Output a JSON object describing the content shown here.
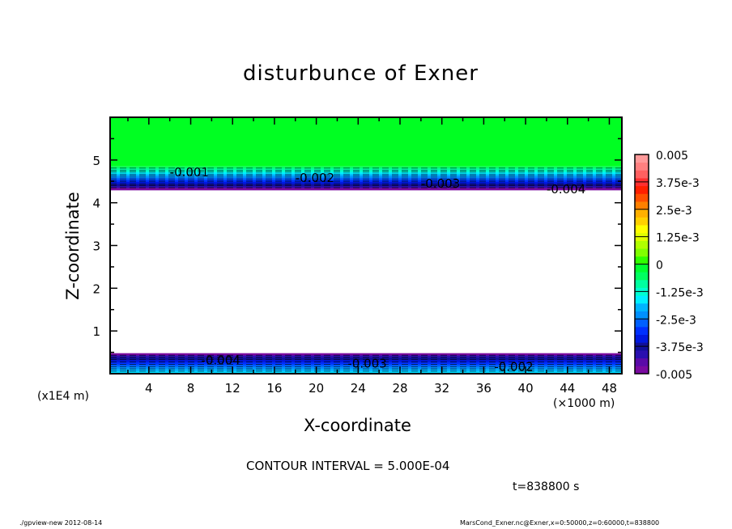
{
  "chart_data": {
    "type": "heatmap",
    "title": "disturbunce of Exner",
    "xlabel": "X-coordinate",
    "ylabel": "Z-coordinate",
    "x_unit": "(×1000 m)",
    "y_unit": "(x1E4 m)",
    "xlim": [
      0.3,
      49.2
    ],
    "ylim": [
      0,
      6
    ],
    "x_ticks": [
      4,
      8,
      12,
      16,
      20,
      24,
      28,
      32,
      36,
      40,
      44,
      48
    ],
    "y_ticks": [
      1,
      2,
      3,
      4,
      5
    ],
    "contour_interval_text": "CONTOUR INTERVAL = 5.000E-04",
    "time_text": "t=838800 s",
    "colorbar": {
      "min": -0.005,
      "max": 0.005,
      "step": 0.0005,
      "tick_labels": [
        "0.005",
        "3.75e-3",
        "2.5e-3",
        "1.25e-3",
        "0",
        "-1.25e-3",
        "-2.5e-3",
        "-3.75e-3",
        "-0.005"
      ],
      "colors": [
        "#7a0aa0",
        "#5a0aa8",
        "#2a10b0",
        "#10109a",
        "#0018e0",
        "#0030ff",
        "#0060ff",
        "#0090ff",
        "#00b4ff",
        "#00f0ff",
        "#00ffd0",
        "#00ffa0",
        "#00ff60",
        "#00ff30",
        "#30ff00",
        "#80ff00",
        "#b0ff00",
        "#e0ff00",
        "#ffff00",
        "#ffd000",
        "#ffb000",
        "#ff8000",
        "#ff5000",
        "#ff2000",
        "#ff3030",
        "#ff6060",
        "#ff8080",
        "#ff9a9a"
      ]
    },
    "upper_layer": {
      "z_top_green": 4.85,
      "z_bottom": 4.3,
      "contour_labels": [
        "-0.001",
        "-0.002",
        "-0.003",
        "-0.004"
      ]
    },
    "lower_layer": {
      "z_top": 0.48,
      "z_bottom": 0,
      "contour_labels": [
        "-0.004",
        "-0.003",
        "-0.002"
      ]
    },
    "background_value": 0
  },
  "footer": {
    "left": "./gpview-new  2012-08-14",
    "right": "MarsCond_Exner.nc@Exner,x=0:50000,z=0:60000,t=838800"
  }
}
